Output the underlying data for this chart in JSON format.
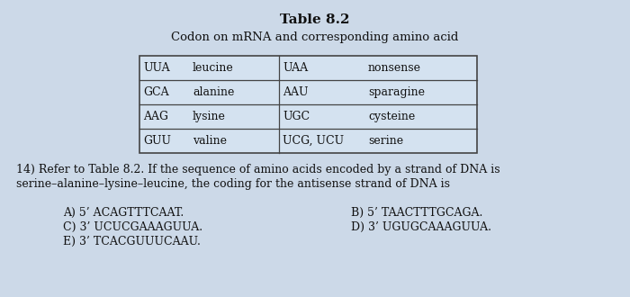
{
  "title": "Table 8.2",
  "subtitle": "Codon on mRNA and corresponding amino acid",
  "table": {
    "col1": [
      "UUA",
      "GCA",
      "AAG",
      "GUU"
    ],
    "col2": [
      "leucine",
      "alanine",
      "lysine",
      "valine"
    ],
    "col3": [
      "UAA",
      "AAU",
      "UGC",
      "UCG, UCU"
    ],
    "col4": [
      "nonsense",
      "sparagine",
      "cysteine",
      "serine"
    ]
  },
  "question_line1": "14) Refer to Table 8.2. If the sequence of amino acids encoded by a strand of DNA is",
  "question_line2": "serine–alanine–lysine–leucine, the coding for the antisense strand of DNA is",
  "ans_A": "A) 5’ ACAGTTTCAAT.",
  "ans_B": "B) 5’ TAACTTTGCAGA.",
  "ans_C": "C) 3’ UCUCGAAAGUUA.",
  "ans_D": "D) 3’ UGUGCAAAGUUA.",
  "ans_E": "E) 3’ TCACGUUUCAAU.",
  "bg_color": "#ccd9e8",
  "table_bg": "#d4e2f0",
  "border_color": "#444444",
  "text_color": "#111111"
}
